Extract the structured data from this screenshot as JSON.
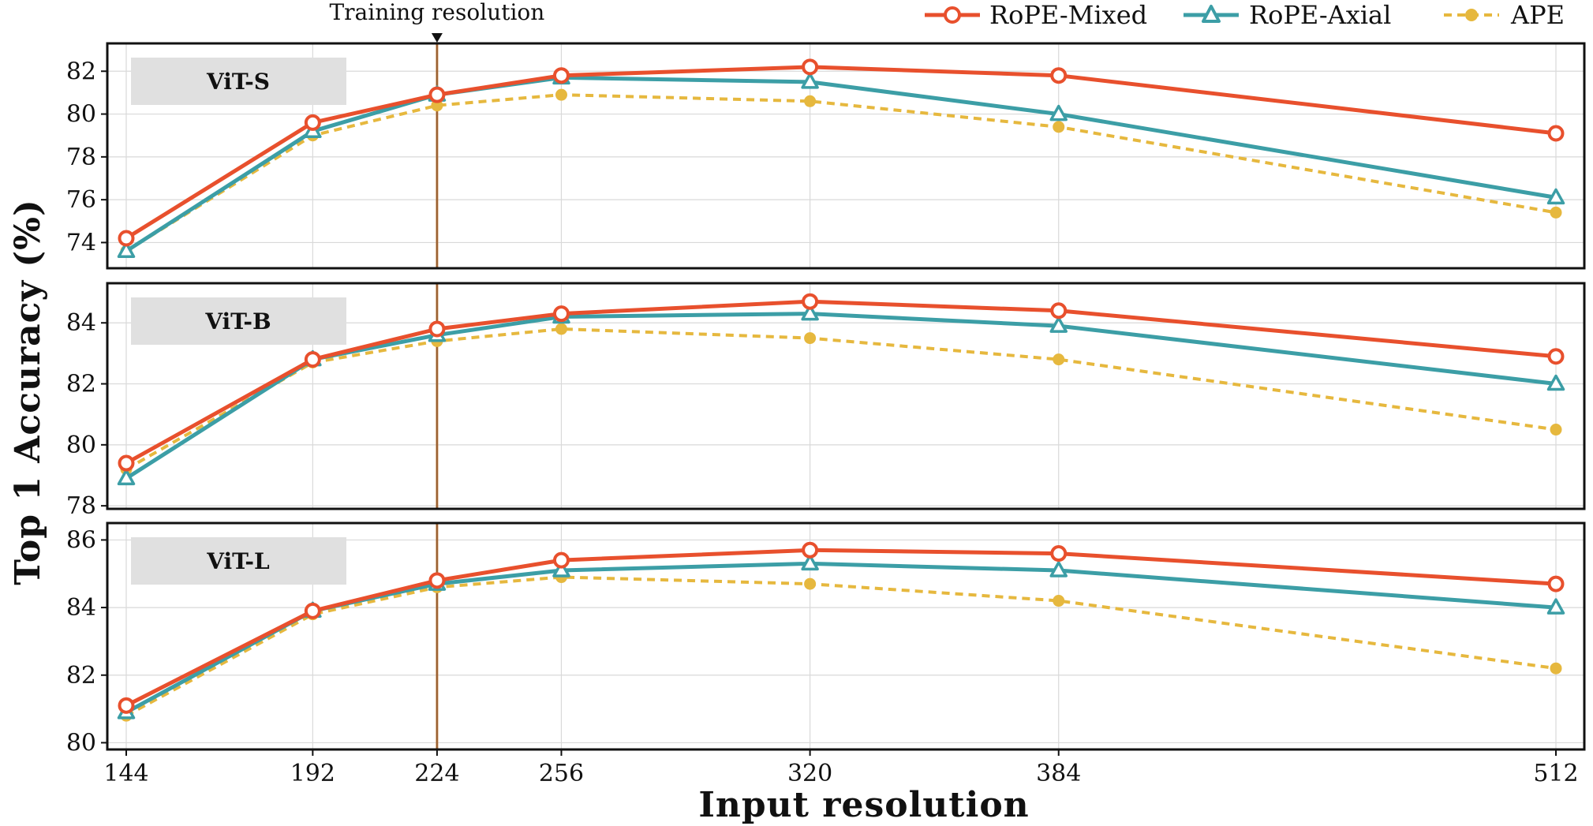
{
  "chart_data": {
    "type": "line",
    "xlabel": "Input resolution",
    "ylabel": "Top 1 Accuracy (%)",
    "x": [
      144,
      192,
      224,
      256,
      320,
      384,
      512
    ],
    "x_tick_labels": [
      "144",
      "192",
      "224",
      "256",
      "320",
      "384",
      "512"
    ],
    "annotation": {
      "text": "Training resolution",
      "x": 224
    },
    "legend": {
      "placement": "top-right, outside",
      "entries": [
        "RoPE-Mixed",
        "RoPE-Axial",
        "APE"
      ]
    },
    "colors": {
      "RoPE-Mixed": "#e8502d",
      "RoPE-Axial": "#3c9ea6",
      "APE": "#e6b83e",
      "training_line": "#c8864a",
      "label_box": "#e0e0e0"
    },
    "grid": true,
    "panels": [
      {
        "label": "ViT-S",
        "ylim": [
          72.8,
          83.3
        ],
        "yticks": [
          74,
          76,
          78,
          80,
          82
        ],
        "ytick_labels": [
          "74",
          "76",
          "78",
          "80",
          "82"
        ],
        "series": [
          {
            "name": "RoPE-Mixed",
            "values": [
              74.2,
              79.6,
              80.9,
              81.8,
              82.2,
              81.8,
              79.1
            ]
          },
          {
            "name": "RoPE-Axial",
            "values": [
              73.6,
              79.2,
              80.9,
              81.7,
              81.5,
              80.0,
              76.1
            ]
          },
          {
            "name": "APE",
            "values": [
              73.6,
              79.0,
              80.4,
              80.9,
              80.6,
              79.4,
              75.4
            ]
          }
        ]
      },
      {
        "label": "ViT-B",
        "ylim": [
          77.9,
          85.3
        ],
        "yticks": [
          78,
          80,
          82,
          84
        ],
        "ytick_labels": [
          "78",
          "80",
          "82",
          "84"
        ],
        "series": [
          {
            "name": "RoPE-Mixed",
            "values": [
              79.4,
              82.8,
              83.8,
              84.3,
              84.7,
              84.4,
              82.9
            ]
          },
          {
            "name": "RoPE-Axial",
            "values": [
              78.9,
              82.8,
              83.6,
              84.2,
              84.3,
              83.9,
              82.0
            ]
          },
          {
            "name": "APE",
            "values": [
              79.2,
              82.7,
              83.4,
              83.8,
              83.5,
              82.8,
              80.5
            ]
          }
        ]
      },
      {
        "label": "ViT-L",
        "ylim": [
          79.8,
          86.5
        ],
        "yticks": [
          80,
          82,
          84,
          86
        ],
        "ytick_labels": [
          "80",
          "82",
          "84",
          "86"
        ],
        "series": [
          {
            "name": "RoPE-Mixed",
            "values": [
              81.1,
              83.9,
              84.8,
              85.4,
              85.7,
              85.6,
              84.7
            ]
          },
          {
            "name": "RoPE-Axial",
            "values": [
              80.9,
              83.9,
              84.7,
              85.1,
              85.3,
              85.1,
              84.0
            ]
          },
          {
            "name": "APE",
            "values": [
              80.8,
              83.8,
              84.6,
              84.9,
              84.7,
              84.2,
              82.2
            ]
          }
        ]
      }
    ]
  }
}
